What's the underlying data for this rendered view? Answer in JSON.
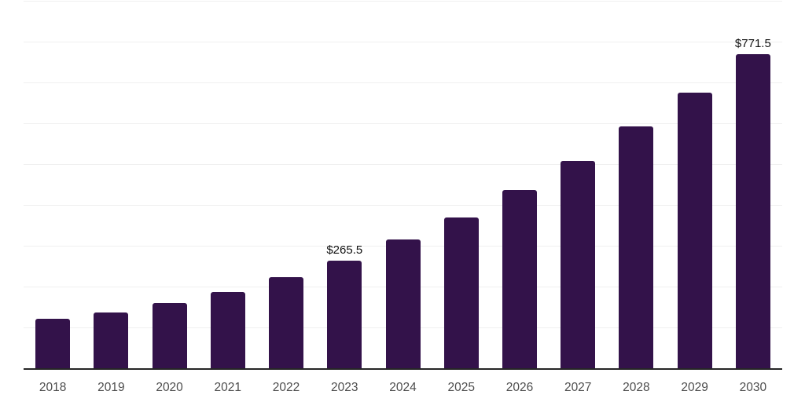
{
  "page": {
    "background": "#ffffff"
  },
  "chart_data": {
    "type": "bar",
    "title": "",
    "xlabel": "",
    "ylabel": "",
    "categories": [
      "2018",
      "2019",
      "2020",
      "2021",
      "2022",
      "2023",
      "2024",
      "2025",
      "2026",
      "2027",
      "2028",
      "2029",
      "2030"
    ],
    "values": [
      123.0,
      138.4,
      161.4,
      188.2,
      224.6,
      265.5,
      316.8,
      370.6,
      437.8,
      508.8,
      593.3,
      677.8,
      771.5
    ],
    "point_labels": {
      "2023": "$265.5",
      "2030": "$771.5"
    },
    "ylim": [
      0,
      900
    ],
    "gridline_step": 100,
    "grid": true,
    "legend": false,
    "colors": {
      "bar": "#33124a",
      "axis_line": "#262626",
      "gridline": "#f0f0f0",
      "tick_label": "#4d4d4d",
      "value_label": "#111111"
    }
  }
}
